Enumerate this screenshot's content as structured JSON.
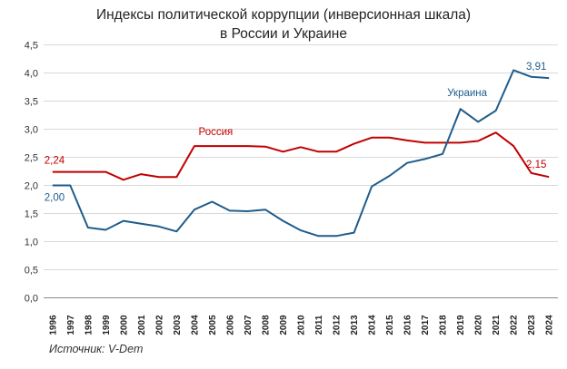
{
  "title_line1": "Индексы политической коррупции (инверсионная шкала)",
  "title_line2": "в России и Украине",
  "source": "Источник: V-Dem",
  "chart_data": {
    "type": "line",
    "title": "Индексы политической коррупции (инверсионная шкала) в России и Украине",
    "x": [
      1996,
      1997,
      1998,
      1999,
      2000,
      2001,
      2002,
      2003,
      2004,
      2005,
      2006,
      2007,
      2008,
      2009,
      2010,
      2011,
      2012,
      2013,
      2014,
      2015,
      2016,
      2017,
      2018,
      2019,
      2020,
      2021,
      2022,
      2023,
      2024
    ],
    "ylim": [
      0,
      4.5
    ],
    "yticks": [
      "0,0",
      "0,5",
      "1,0",
      "1,5",
      "2,0",
      "2,5",
      "3,0",
      "3,5",
      "4,0",
      "4,5"
    ],
    "grid": true,
    "series": [
      {
        "name": "Россия",
        "color": "#c00000",
        "values": [
          2.24,
          2.24,
          2.24,
          2.24,
          2.1,
          2.2,
          2.15,
          2.15,
          2.7,
          2.7,
          2.7,
          2.7,
          2.69,
          2.6,
          2.68,
          2.6,
          2.6,
          2.74,
          2.85,
          2.85,
          2.8,
          2.76,
          2.76,
          2.76,
          2.79,
          2.94,
          2.7,
          2.22,
          2.15
        ],
        "first_label": "2,24",
        "last_label": "2,15"
      },
      {
        "name": "Украина",
        "color": "#1f5c8b",
        "values": [
          2.0,
          2.0,
          1.25,
          1.21,
          1.37,
          1.32,
          1.27,
          1.18,
          1.57,
          1.71,
          1.55,
          1.54,
          1.57,
          1.37,
          1.2,
          1.1,
          1.1,
          1.16,
          1.98,
          2.17,
          2.4,
          2.47,
          2.56,
          3.36,
          3.13,
          3.33,
          4.05,
          3.93,
          3.91
        ],
        "first_label": "2,00",
        "last_label": "3,91"
      }
    ]
  }
}
